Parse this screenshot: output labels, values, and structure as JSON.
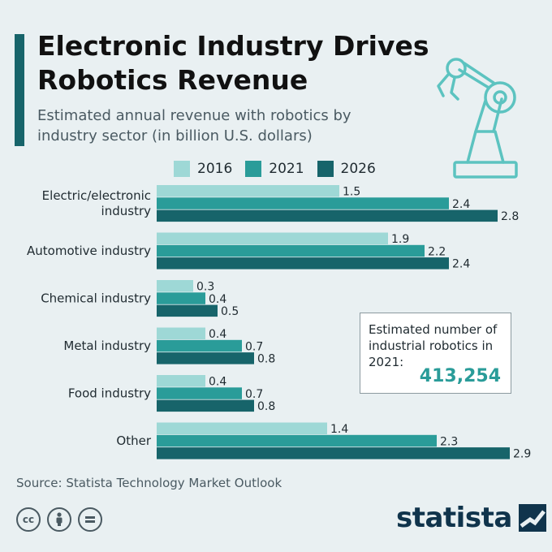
{
  "title": "Electronic Industry Drives Robotics Revenue",
  "subtitle": "Estimated annual revenue with robotics by industry sector (in billion U.S. dollars)",
  "colors": {
    "2016": "#9ed8d6",
    "2021": "#2a9c99",
    "2026": "#17646a",
    "accent": "#17646a",
    "highlight": "#2a9c99"
  },
  "chart_data": {
    "type": "bar",
    "orientation": "horizontal",
    "title": "Electronic Industry Drives Robotics Revenue",
    "subtitle": "Estimated annual revenue with robotics by industry sector (in billion U.S. dollars)",
    "categories": [
      "Electric/electronic industry",
      "Automotive industry",
      "Chemical industry",
      "Metal industry",
      "Food industry",
      "Other"
    ],
    "category_lines": [
      [
        "Electric/electronic",
        "industry"
      ],
      [
        "Automotive industry"
      ],
      [
        "Chemical industry"
      ],
      [
        "Metal industry"
      ],
      [
        "Food industry"
      ],
      [
        "Other"
      ]
    ],
    "series": [
      {
        "name": "2016",
        "values": [
          1.5,
          1.9,
          0.3,
          0.4,
          0.4,
          1.4
        ]
      },
      {
        "name": "2021",
        "values": [
          2.4,
          2.2,
          0.4,
          0.7,
          0.7,
          2.3
        ]
      },
      {
        "name": "2026",
        "values": [
          2.8,
          2.4,
          0.5,
          0.8,
          0.8,
          2.9
        ]
      }
    ],
    "legend_position": "top",
    "grid": false,
    "xlim": [
      0,
      3.2
    ]
  },
  "info_box": {
    "text": "Estimated number of industrial robotics in 2021:",
    "value": "413,254"
  },
  "source": "Source: Statista Technology Market Outlook",
  "license_icons": [
    "cc",
    "person",
    "equals"
  ],
  "brand": "statista"
}
